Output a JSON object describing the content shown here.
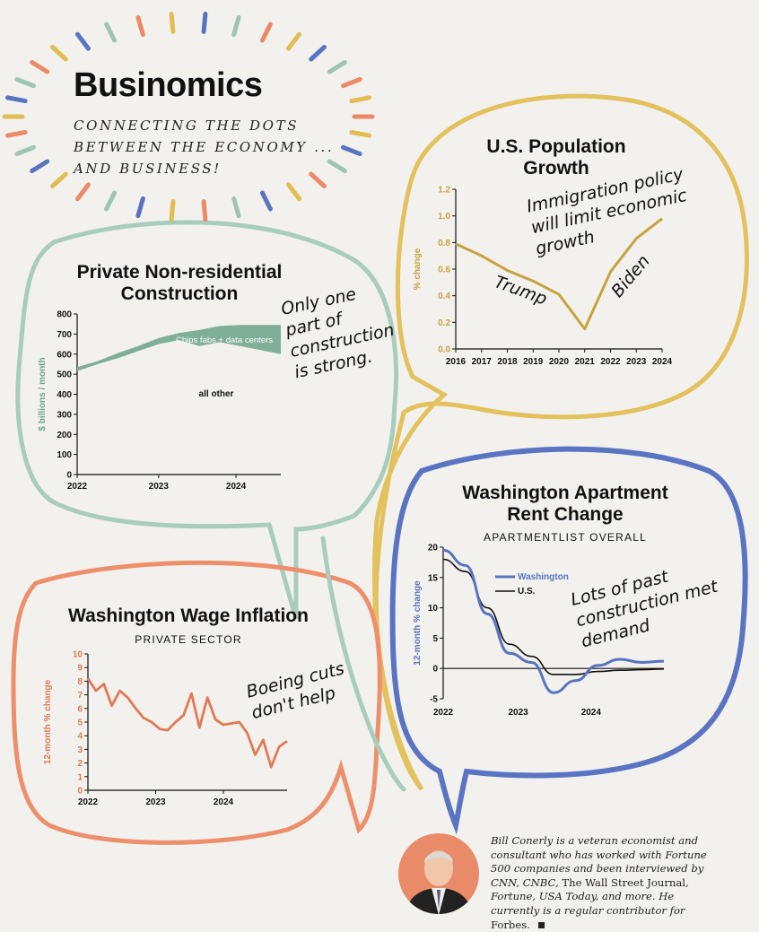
{
  "brand": {
    "title": "Businomics",
    "tagline": [
      "CONNECTING THE DOTS",
      "BETWEEN THE ECONOMY ...",
      "AND BUSINESS!"
    ]
  },
  "colors": {
    "teal": "#9ec5b4",
    "teal_dark": "#6fa58e",
    "yellow": "#e2bd52",
    "gold_line": "#c9a23f",
    "blue": "#5a73c0",
    "coral": "#ec8a67",
    "coral_line": "#e07a55"
  },
  "chart_data": [
    {
      "id": "construction",
      "type": "area",
      "title": [
        "Private Non-residential",
        "Construction"
      ],
      "ylabel": "$ billions / month",
      "ylim": [
        0,
        800
      ],
      "yticks": [
        "800",
        "700",
        "600",
        "500",
        "400",
        "300",
        "200",
        "100",
        "0"
      ],
      "xticks": [
        "2022",
        "2023",
        "2024"
      ],
      "x": [
        0,
        0.1,
        0.2,
        0.3,
        0.4,
        0.5,
        0.6,
        0.7,
        0.8,
        0.9,
        1.0
      ],
      "series": [
        {
          "name": "Chips fabs + data centers",
          "values": [
            515,
            550,
            580,
            615,
            650,
            670,
            640,
            660,
            640,
            620,
            600
          ]
        },
        {
          "name": "all other",
          "values": [
            535,
            565,
            605,
            640,
            680,
            705,
            720,
            740,
            745,
            745,
            745
          ]
        }
      ],
      "annotation": "Only one part of construction is strong."
    },
    {
      "id": "population",
      "type": "line",
      "title": [
        "U.S. Population",
        "Growth"
      ],
      "ylabel": "% change",
      "ylim": [
        0,
        1.2
      ],
      "yticks": [
        "1.2",
        "1.0",
        "0.8",
        "0.6",
        "0.4",
        "0.2",
        "0.0"
      ],
      "x": [
        "2016",
        "2017",
        "2018",
        "2019",
        "2020",
        "2021",
        "2022",
        "2023",
        "2024"
      ],
      "values": [
        0.79,
        0.7,
        0.59,
        0.51,
        0.41,
        0.15,
        0.58,
        0.83,
        0.98
      ],
      "annotations": [
        "Immigration policy will limit economic growth",
        "Trump",
        "Biden"
      ]
    },
    {
      "id": "rent",
      "type": "line",
      "title": [
        "Washington Apartment",
        "Rent Change"
      ],
      "subtitle": "APARTMENTLIST OVERALL",
      "ylabel": "12-month % change",
      "ylim": [
        -5,
        20
      ],
      "yticks": [
        "20",
        "15",
        "10",
        "5",
        "0",
        "-5"
      ],
      "xticks": [
        "2022",
        "2023",
        "2024"
      ],
      "x": [
        0,
        0.1,
        0.2,
        0.3,
        0.4,
        0.5,
        0.6,
        0.7,
        0.8,
        0.9,
        1.0
      ],
      "series": [
        {
          "name": "Washington",
          "values": [
            19.5,
            17,
            9,
            2.5,
            1,
            -4,
            -2,
            0.5,
            1.5,
            1,
            1.2
          ]
        },
        {
          "name": "U.S.",
          "values": [
            18,
            16,
            10,
            4,
            2,
            -1,
            -1,
            -0.5,
            -0.3,
            -0.2,
            -0.1
          ]
        }
      ],
      "annotation": "Lots of past construction met demand"
    },
    {
      "id": "wage",
      "type": "line",
      "title": [
        "Washington Wage Inflation"
      ],
      "subtitle": "PRIVATE SECTOR",
      "ylabel": "12-month % change",
      "ylim": [
        0,
        10
      ],
      "yticks": [
        "10",
        "9",
        "8",
        "7",
        "6",
        "5",
        "4",
        "3",
        "2",
        "1",
        "0"
      ],
      "xticks": [
        "2022",
        "2023",
        "2024"
      ],
      "x": [
        0,
        0.04,
        0.08,
        0.12,
        0.16,
        0.2,
        0.24,
        0.28,
        0.32,
        0.36,
        0.4,
        0.44,
        0.48,
        0.52,
        0.56,
        0.6,
        0.64,
        0.68,
        0.72,
        0.76,
        0.8,
        0.84,
        0.88,
        0.92,
        0.96,
        1.0
      ],
      "values": [
        8.2,
        7.3,
        7.8,
        6.2,
        7.3,
        6.8,
        6.0,
        5.3,
        5.0,
        4.5,
        4.4,
        5.0,
        5.5,
        7.1,
        4.6,
        6.8,
        5.2,
        4.8,
        4.9,
        5.0,
        4.2,
        2.6,
        3.7,
        1.7,
        3.2,
        3.6
      ],
      "annotation": "Boeing cuts don't help"
    }
  ],
  "bio": {
    "text_1": "Bill Conerly is a veteran economist and consultant who has worked with Fortune 500 companies and been interviewed by CNN, CNBC, ",
    "pub_1": "The Wall Street Journal",
    "text_2": ", Fortune, USA Today, and more. He currently is a regular contributor for ",
    "pub_2": "Forbes",
    "end": "."
  }
}
